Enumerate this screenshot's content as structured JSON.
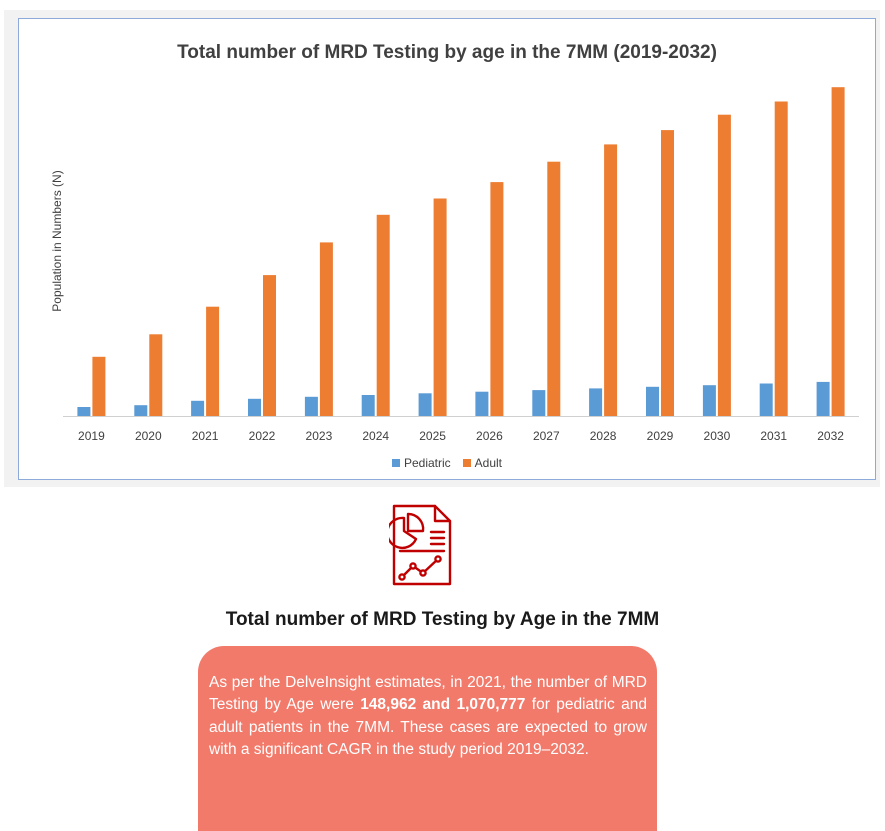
{
  "chart_data": {
    "type": "bar",
    "title": "Total number of MRD Testing by age in the 7MM (2019-2032)",
    "xlabel": "",
    "ylabel": "Population in Numbers (N)",
    "categories": [
      "2019",
      "2020",
      "2021",
      "2022",
      "2023",
      "2024",
      "2025",
      "2026",
      "2027",
      "2028",
      "2029",
      "2030",
      "2031",
      "2032"
    ],
    "series": [
      {
        "name": "Pediatric",
        "color": "#5b9bd5",
        "values": [
          88000,
          106000,
          148962,
          168000,
          188000,
          206000,
          222000,
          238000,
          254000,
          270000,
          286000,
          302000,
          318000,
          334000
        ]
      },
      {
        "name": "Adult",
        "color": "#ed7d31",
        "values": [
          580000,
          800000,
          1070777,
          1380000,
          1700000,
          1970000,
          2130000,
          2290000,
          2490000,
          2660000,
          2800000,
          2950000,
          3080000,
          3220000
        ]
      }
    ],
    "ylim": [
      0,
      3300000
    ],
    "grid": false,
    "legend": "bottom-center"
  },
  "section": {
    "heading": "Total number of MRD Testing by Age in the 7MM",
    "body_before": "As per the DelveInsight estimates, in 2021, the number of MRD Testing by Age were ",
    "body_bold": "148,962 and 1,070,777",
    "body_after": " for pediatric and adult patients in the 7MM. These cases are expected to grow with a significant CAGR in the study period 2019–2032."
  },
  "colors": {
    "icon": "#c00000",
    "card": "#f27a6b"
  }
}
